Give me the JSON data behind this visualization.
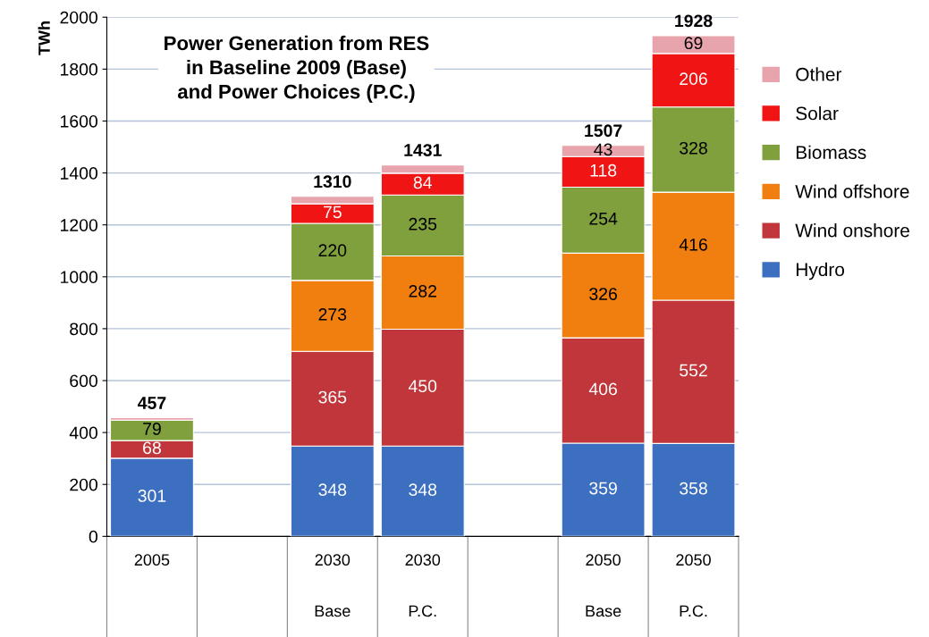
{
  "chart_data": {
    "type": "bar",
    "stacked": true,
    "title": "Power Generation from RES\nin Baseline 2009 (Base)\nand Power Choices (P.C.)",
    "ylabel": "TWh",
    "categories": [
      "2005",
      null,
      "2030\nBase",
      "2030\nP.C.",
      null,
      "2050\nBase",
      "2050\nP.C."
    ],
    "series": [
      {
        "name": "Hydro",
        "color": "#3c6fc0",
        "values": [
          301,
          null,
          348,
          348,
          null,
          359,
          358
        ],
        "value_labels": [
          "301",
          null,
          "348",
          "348",
          null,
          "359",
          "358"
        ]
      },
      {
        "name": "Wind onshore",
        "color": "#c0363a",
        "values": [
          68,
          null,
          365,
          450,
          null,
          406,
          552
        ],
        "value_labels": [
          "68",
          null,
          "365",
          "450",
          null,
          "406",
          "552"
        ]
      },
      {
        "name": "Wind offshore",
        "color": "#f07f10",
        "values": [
          0,
          null,
          273,
          282,
          null,
          326,
          416
        ],
        "value_labels": [
          null,
          null,
          "273",
          "282",
          null,
          "326",
          "416"
        ]
      },
      {
        "name": "Biomass",
        "color": "#7fa03c",
        "values": [
          79,
          null,
          220,
          235,
          null,
          254,
          328
        ],
        "value_labels": [
          "79",
          null,
          "220",
          "235",
          null,
          "254",
          "328"
        ]
      },
      {
        "name": "Solar",
        "color": "#f01414",
        "values": [
          0,
          null,
          75,
          84,
          null,
          118,
          206
        ],
        "value_labels": [
          null,
          null,
          "75",
          "84",
          null,
          "118",
          "206"
        ]
      },
      {
        "name": "Other",
        "color": "#e8a4ac",
        "values": [
          9,
          null,
          29,
          32,
          null,
          43,
          69
        ],
        "value_labels": [
          null,
          null,
          null,
          null,
          null,
          "43",
          "69"
        ]
      }
    ],
    "totals": [
      "457",
      null,
      "1310",
      "1431",
      null,
      "1507",
      "1928"
    ],
    "ylim": [
      0,
      2000
    ],
    "yticks": [
      0,
      200,
      400,
      600,
      800,
      1000,
      1200,
      1400,
      1600,
      1800,
      2000
    ],
    "grid": "y",
    "legend": "right"
  }
}
